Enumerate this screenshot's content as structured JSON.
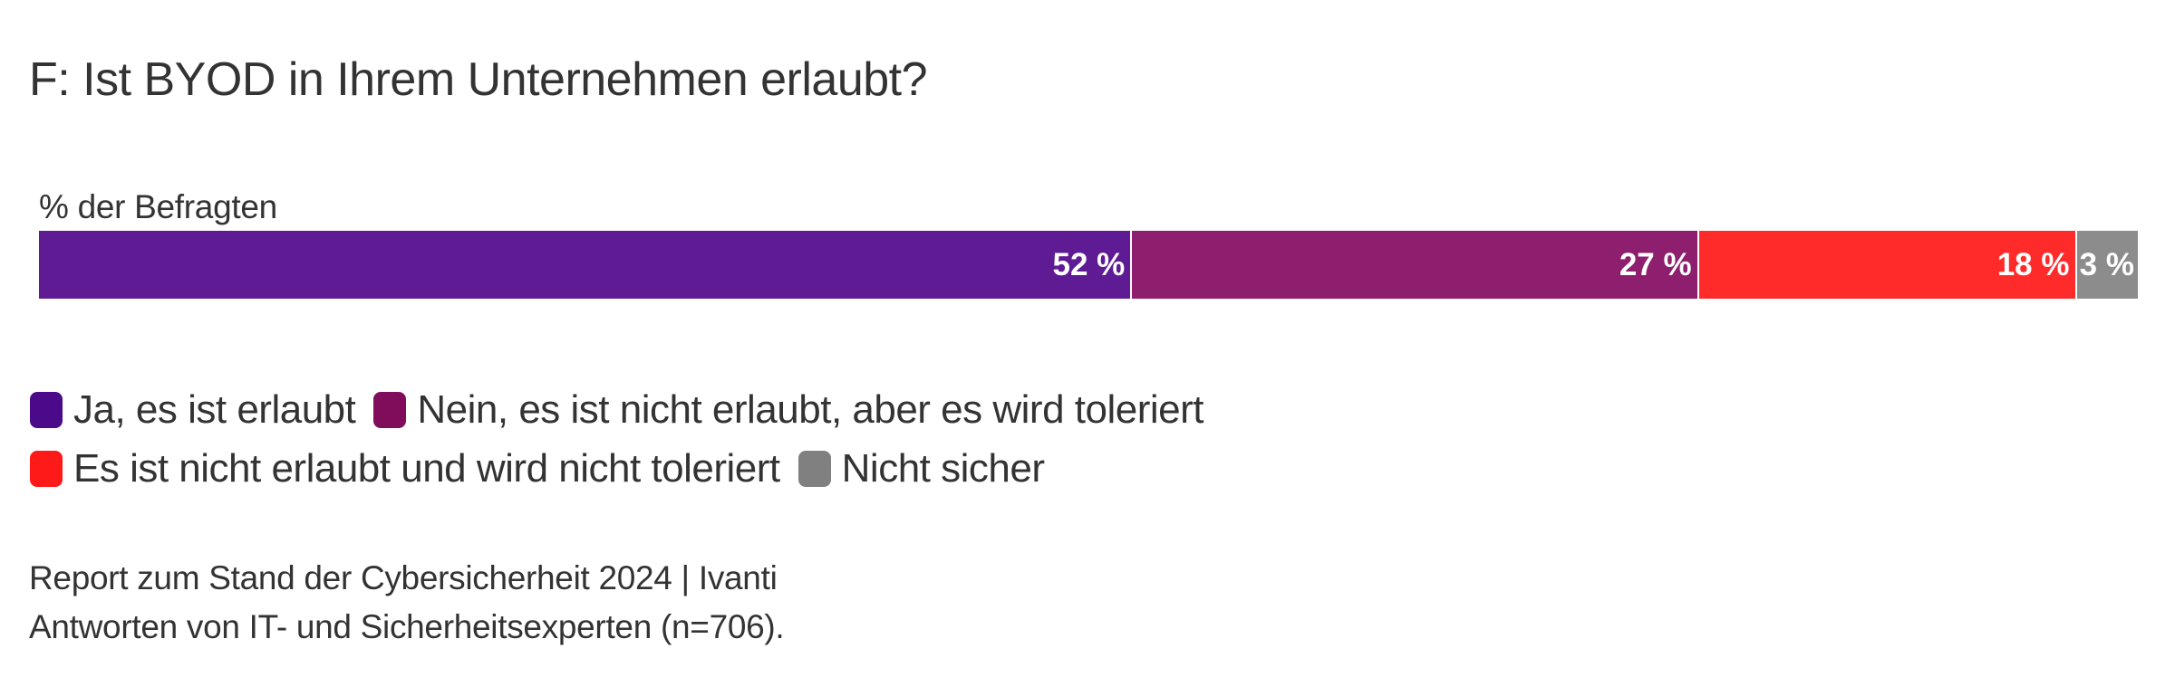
{
  "chart_data": {
    "type": "bar",
    "orientation": "horizontal-stacked",
    "title": "F: Ist BYOD in Ihrem Unternehmen erlaubt?",
    "xlabel": "",
    "ylabel": "% der Befragten",
    "categories": [
      "% der Befragten"
    ],
    "series": [
      {
        "name": "Ja, es ist erlaubt",
        "values": [
          52
        ],
        "label": "52 %",
        "color": "#5e1b94"
      },
      {
        "name": "Nein, es ist nicht erlaubt, aber es wird toleriert",
        "values": [
          27
        ],
        "label": "27 %",
        "color": "#8e1f6e"
      },
      {
        "name": "Es ist nicht erlaubt und wird nicht toleriert",
        "values": [
          18
        ],
        "label": "18 %",
        "color": "#ff2b2b"
      },
      {
        "name": "Nicht sicher",
        "values": [
          3
        ],
        "label": "3 %",
        "color": "#8c8c8c"
      }
    ],
    "xlim": [
      0,
      100
    ],
    "grid": false,
    "legend_position": "bottom-left"
  },
  "legend": {
    "rows": [
      [
        {
          "label": "Ja, es ist erlaubt",
          "color": "#4b0a8a"
        },
        {
          "label": "Nein, es ist nicht erlaubt, aber es wird toleriert",
          "color": "#7f0d5c"
        }
      ],
      [
        {
          "label": "Es ist nicht erlaubt und wird nicht toleriert",
          "color": "#ff1a1a"
        },
        {
          "label": "Nicht sicher",
          "color": "#808080"
        }
      ]
    ]
  },
  "footer": {
    "source": "Report zum Stand der Cybersicherheit 2024 | Ivanti",
    "note": "Antworten von IT- und Sicherheitsexperten (n=706)."
  }
}
